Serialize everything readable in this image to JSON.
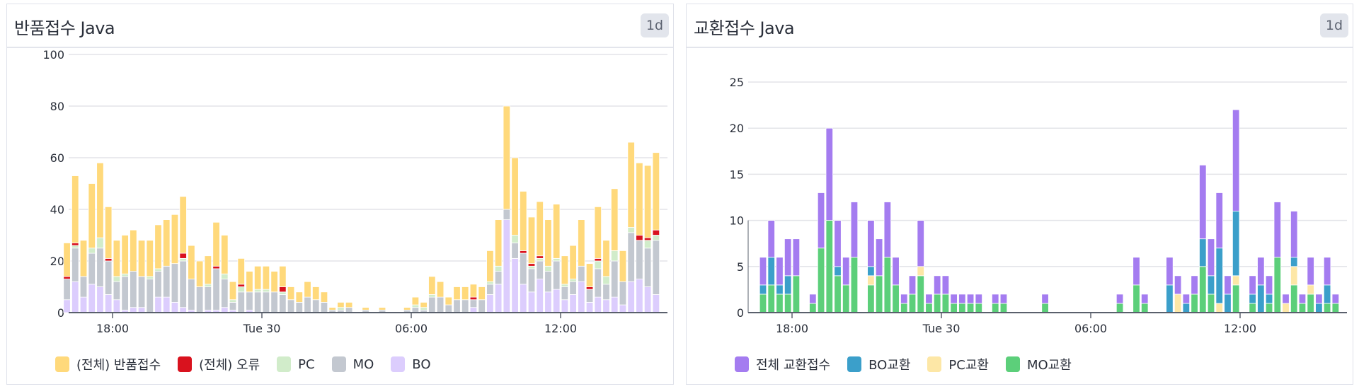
{
  "chart_data": [
    {
      "type": "bar",
      "stacked": true,
      "title": "반품접수 Java",
      "time_range_badge": "1d",
      "ylim": [
        0,
        100
      ],
      "yticks": [
        0,
        20,
        40,
        60,
        80,
        100
      ],
      "xtick_labels": [
        "18:00",
        "Tue 30",
        "06:00",
        "12:00"
      ],
      "xtick_times": [
        "18:00",
        "00:00",
        "06:00",
        "12:00"
      ],
      "grid": true,
      "legend_position": "bottom",
      "x": [
        "16:20",
        "16:40",
        "17:00",
        "17:20",
        "17:40",
        "18:00",
        "18:20",
        "18:40",
        "19:00",
        "19:20",
        "19:40",
        "20:00",
        "20:20",
        "20:40",
        "21:00",
        "21:20",
        "21:40",
        "22:00",
        "22:20",
        "22:40",
        "23:00",
        "23:20",
        "23:40",
        "00:00",
        "00:20",
        "00:40",
        "01:00",
        "01:20",
        "01:40",
        "02:00",
        "02:20",
        "02:40",
        "03:00",
        "03:20",
        "03:40",
        "04:00",
        "04:20",
        "04:40",
        "05:00",
        "05:20",
        "05:40",
        "06:00",
        "06:20",
        "06:40",
        "07:00",
        "07:20",
        "07:40",
        "08:00",
        "08:20",
        "08:40",
        "09:00",
        "09:20",
        "09:40",
        "10:00",
        "10:20",
        "10:40",
        "11:00",
        "11:20",
        "11:40",
        "12:00",
        "12:20",
        "12:40",
        "13:00",
        "13:20",
        "13:40",
        "14:00",
        "14:20",
        "14:40",
        "15:00",
        "15:20",
        "15:40",
        "16:00"
      ],
      "series": [
        {
          "name": "BO",
          "color": "#dccdfd",
          "values": [
            12,
            6,
            11,
            10,
            7,
            5,
            1,
            2,
            2,
            0,
            6,
            6,
            4,
            2,
            1,
            0,
            1,
            1,
            2,
            1,
            0,
            1,
            0,
            0,
            0,
            0,
            0,
            0,
            0,
            0,
            0,
            0,
            0,
            0,
            0,
            0,
            0,
            0,
            0,
            0,
            0,
            0,
            0,
            0,
            0,
            0,
            0,
            0,
            2,
            0,
            7,
            11,
            36,
            21,
            11,
            8,
            13,
            8,
            9,
            5,
            7,
            12,
            4,
            6,
            5,
            6,
            3,
            12,
            13,
            10,
            7,
            5
          ]
        },
        {
          "name": "MO",
          "color": "#c3c8d0",
          "values": [
            13,
            8,
            12,
            15,
            13,
            7,
            13,
            14,
            12,
            13,
            10,
            12,
            15,
            18,
            12,
            10,
            9,
            16,
            11,
            3,
            8,
            7,
            8,
            8,
            8,
            7,
            5,
            4,
            6,
            5,
            4,
            1,
            1,
            2,
            0,
            1,
            0,
            1,
            0,
            0,
            1,
            2,
            1,
            6,
            6,
            3,
            5,
            5,
            3,
            5,
            4,
            5,
            4,
            6,
            12,
            9,
            7,
            8,
            11,
            5,
            5,
            6,
            5,
            11,
            6,
            14,
            9,
            19,
            15,
            15,
            21,
            8
          ]
        },
        {
          "name": "PC",
          "color": "#d1ecca",
          "values": [
            1,
            0,
            2,
            4,
            0,
            2,
            1,
            0,
            0,
            1,
            1,
            0,
            0,
            1,
            0,
            0,
            1,
            0,
            2,
            1,
            2,
            0,
            1,
            1,
            0,
            1,
            0,
            0,
            0,
            0,
            0,
            0,
            1,
            0,
            0,
            0,
            0,
            0,
            0,
            0,
            0,
            1,
            1,
            1,
            0,
            0,
            0,
            0,
            0,
            0,
            1,
            2,
            0,
            3,
            0,
            1,
            1,
            2,
            1,
            1,
            1,
            0,
            0,
            3,
            3,
            4,
            0,
            2,
            0,
            3,
            2,
            0
          ]
        },
        {
          "name": "(전체) 오류",
          "color": "#d9121e",
          "values": [
            1,
            0,
            0,
            0,
            1,
            0,
            0,
            0,
            0,
            0,
            0,
            0,
            0,
            2,
            0,
            0,
            0,
            1,
            0,
            0,
            1,
            0,
            0,
            0,
            0,
            2,
            0,
            0,
            0,
            0,
            0,
            0,
            0,
            0,
            0,
            0,
            0,
            0,
            0,
            0,
            0,
            0,
            0,
            0,
            0,
            0,
            0,
            0,
            1,
            0,
            0,
            0,
            0,
            0,
            1,
            1,
            1,
            0,
            0,
            0,
            0,
            0,
            1,
            1,
            0,
            0,
            0,
            0,
            2,
            1,
            2,
            1
          ]
        },
        {
          "name": "(전체) 반품접수",
          "color": "#ffd97b",
          "values": [
            26,
            14,
            25,
            29,
            20,
            14,
            15,
            16,
            14,
            14,
            17,
            18,
            19,
            22,
            13,
            10,
            11,
            17,
            15,
            7,
            10,
            8,
            9,
            9,
            8,
            8,
            5,
            4,
            6,
            5,
            4,
            1,
            2,
            2,
            0,
            1,
            0,
            1,
            0,
            0,
            1,
            3,
            2,
            7,
            6,
            3,
            5,
            5,
            5,
            5,
            12,
            18,
            40,
            30,
            23,
            18,
            21,
            18,
            21,
            11,
            13,
            18,
            9,
            20,
            14,
            24,
            12,
            33,
            28,
            28,
            30,
            13
          ]
        }
      ],
      "legend": [
        "(전체) 반품접수",
        "(전체) 오류",
        "PC",
        "MO",
        "BO"
      ]
    },
    {
      "type": "bar",
      "stacked": true,
      "title": "교환접수 Java",
      "time_range_badge": "1d",
      "ylim": [
        0,
        27
      ],
      "yticks": [
        0,
        5,
        10,
        15,
        20,
        25
      ],
      "xtick_labels": [
        "18:00",
        "Tue 30",
        "06:00",
        "12:00"
      ],
      "xtick_times": [
        "18:00",
        "00:00",
        "06:00",
        "12:00"
      ],
      "grid": true,
      "legend_position": "bottom",
      "x": [
        "16:20",
        "16:40",
        "17:00",
        "17:20",
        "17:40",
        "18:00",
        "18:20",
        "18:40",
        "19:00",
        "19:20",
        "19:40",
        "20:00",
        "20:20",
        "20:40",
        "21:00",
        "21:20",
        "21:40",
        "22:00",
        "22:20",
        "22:40",
        "23:00",
        "23:20",
        "23:40",
        "00:00",
        "00:20",
        "00:40",
        "01:00",
        "01:20",
        "01:40",
        "02:00",
        "02:20",
        "02:40",
        "03:00",
        "03:20",
        "03:40",
        "04:00",
        "04:20",
        "04:40",
        "05:00",
        "05:20",
        "05:40",
        "06:00",
        "06:20",
        "06:40",
        "07:00",
        "07:20",
        "07:40",
        "08:00",
        "08:20",
        "08:40",
        "09:00",
        "09:20",
        "09:40",
        "10:00",
        "10:20",
        "10:40",
        "11:00",
        "11:20",
        "11:40",
        "12:00",
        "12:20",
        "12:40",
        "13:00",
        "13:20",
        "13:40",
        "14:00",
        "14:20",
        "14:40",
        "15:00",
        "15:20",
        "15:40",
        "16:00"
      ],
      "series": [
        {
          "name": "MO교환",
          "color": "#5ccf7a",
          "values": [
            0,
            2,
            3,
            2,
            2,
            4,
            0,
            1,
            7,
            10,
            4,
            3,
            6,
            0,
            3,
            4,
            6,
            3,
            1,
            2,
            4,
            1,
            2,
            2,
            1,
            1,
            1,
            1,
            0,
            1,
            1,
            0,
            0,
            0,
            0,
            1,
            0,
            0,
            0,
            0,
            0,
            0,
            0,
            0,
            1,
            0,
            3,
            1,
            0,
            0,
            0,
            0,
            0,
            2,
            5,
            2,
            0,
            0,
            3,
            0,
            1,
            0,
            1,
            6,
            0,
            3,
            1,
            2,
            0,
            1,
            1,
            0
          ]
        },
        {
          "name": "PC교환",
          "color": "#fde7a6",
          "values": [
            0,
            0,
            0,
            0,
            0,
            0,
            0,
            0,
            0,
            0,
            0,
            0,
            0,
            0,
            1,
            0,
            0,
            0,
            0,
            0,
            1,
            0,
            0,
            0,
            0,
            0,
            0,
            0,
            0,
            0,
            0,
            0,
            0,
            0,
            0,
            0,
            0,
            0,
            0,
            0,
            0,
            0,
            0,
            0,
            0,
            0,
            0,
            0,
            0,
            0,
            0,
            2,
            0,
            0,
            0,
            0,
            1,
            0,
            1,
            0,
            0,
            0,
            0,
            0,
            1,
            2,
            0,
            1,
            0,
            0,
            0,
            0
          ]
        },
        {
          "name": "BO교환",
          "color": "#3b9fca",
          "values": [
            0,
            1,
            3,
            1,
            2,
            0,
            0,
            0,
            0,
            0,
            1,
            0,
            0,
            0,
            1,
            0,
            0,
            0,
            0,
            0,
            0,
            0,
            0,
            0,
            0,
            0,
            0,
            0,
            0,
            0,
            0,
            0,
            0,
            0,
            0,
            0,
            0,
            0,
            0,
            0,
            0,
            0,
            0,
            0,
            0,
            0,
            0,
            0,
            0,
            0,
            3,
            0,
            1,
            0,
            3,
            2,
            6,
            2,
            7,
            0,
            1,
            3,
            1,
            0,
            0,
            1,
            0,
            0,
            1,
            2,
            0,
            0
          ]
        },
        {
          "name": "전체 교환접수",
          "color": "#a47cf0",
          "values": [
            0,
            3,
            4,
            3,
            4,
            4,
            0,
            1,
            6,
            10,
            5,
            3,
            6,
            0,
            5,
            4,
            6,
            3,
            1,
            2,
            5,
            1,
            2,
            2,
            1,
            1,
            1,
            1,
            0,
            1,
            1,
            0,
            0,
            0,
            0,
            1,
            0,
            0,
            0,
            0,
            0,
            0,
            0,
            0,
            1,
            0,
            3,
            1,
            0,
            0,
            3,
            2,
            1,
            2,
            8,
            4,
            6,
            2,
            11,
            0,
            2,
            3,
            2,
            6,
            1,
            5,
            1,
            3,
            1,
            3,
            1,
            0
          ]
        }
      ],
      "legend": [
        "전체 교환접수",
        "BO교환",
        "PC교환",
        "MO교환"
      ]
    }
  ]
}
